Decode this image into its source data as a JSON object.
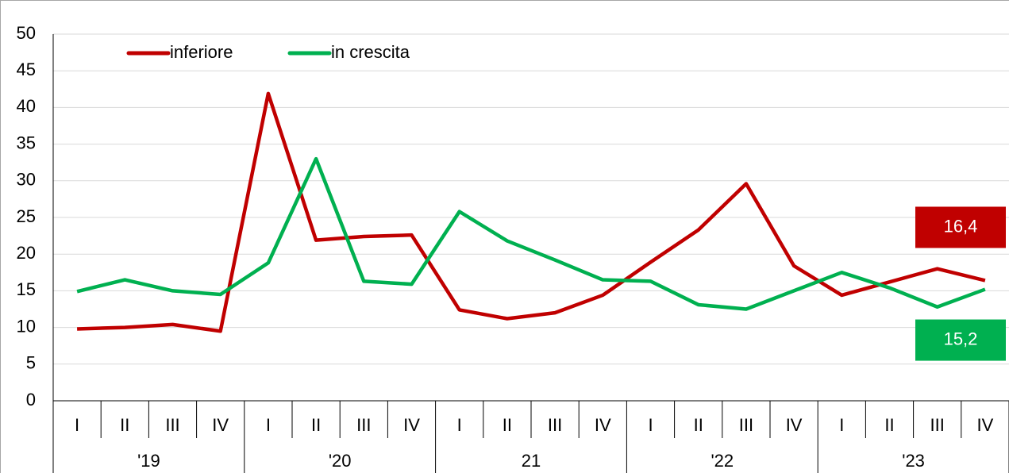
{
  "chart_data": {
    "type": "line",
    "categories": [
      "I",
      "II",
      "III",
      "IV",
      "I",
      "II",
      "III",
      "IV",
      "I",
      "II",
      "III",
      "IV",
      "I",
      "II",
      "III",
      "IV",
      "I",
      "II",
      "III",
      "IV"
    ],
    "groups": [
      "'19",
      "'20",
      "21",
      "'22",
      "'23"
    ],
    "series": [
      {
        "name": "inferiore",
        "color": "#c00000",
        "values": [
          9.8,
          10.0,
          10.4,
          9.5,
          41.9,
          21.9,
          22.4,
          22.6,
          12.4,
          11.2,
          12.0,
          14.4,
          18.9,
          23.3,
          29.6,
          18.4,
          14.4,
          16.2,
          18.0,
          16.4
        ],
        "value_labels": [
          null,
          null,
          null,
          null,
          null,
          null,
          null,
          null,
          null,
          null,
          null,
          null,
          null,
          null,
          null,
          null,
          null,
          null,
          null,
          "16,4"
        ]
      },
      {
        "name": "in crescita",
        "color": "#00b050",
        "values": [
          14.9,
          16.5,
          15.0,
          14.5,
          18.8,
          33.0,
          16.3,
          15.9,
          25.8,
          21.8,
          19.2,
          16.5,
          16.3,
          13.1,
          12.5,
          15.0,
          17.5,
          15.4,
          12.8,
          15.2
        ],
        "value_labels": [
          null,
          null,
          null,
          null,
          null,
          null,
          null,
          null,
          null,
          null,
          null,
          null,
          null,
          null,
          null,
          null,
          null,
          null,
          null,
          "15,2"
        ]
      }
    ],
    "ylim": [
      0,
      50
    ],
    "yticks": [
      0,
      5,
      10,
      15,
      20,
      25,
      30,
      35,
      40,
      45,
      50
    ],
    "grid": true
  }
}
